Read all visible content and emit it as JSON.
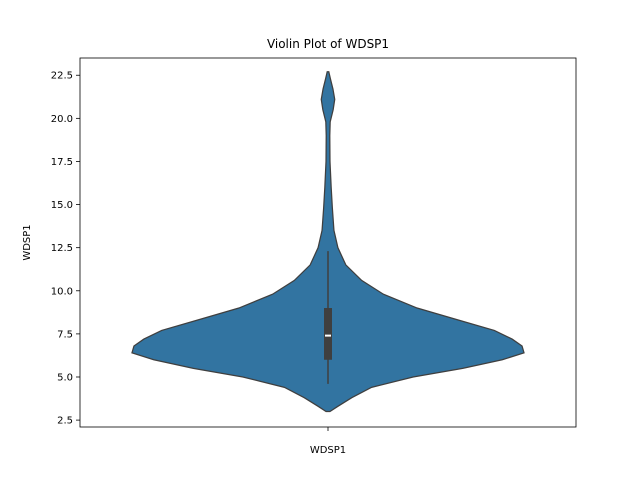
{
  "chart_data": {
    "type": "violin",
    "title": "Violin Plot of WDSP1",
    "xlabel": "",
    "ylabel": "WDSP1",
    "categories": [
      "WDSP1"
    ],
    "ylim": [
      2.1,
      23.5
    ],
    "yticks": [
      "2.5",
      "5.0",
      "7.5",
      "10.0",
      "12.5",
      "15.0",
      "17.5",
      "20.0",
      "22.5"
    ],
    "grid": false,
    "legend": "none",
    "color": "#3274a1",
    "edge_color": "#3f3f3f",
    "series": [
      {
        "category": "WDSP1",
        "min": 4.6,
        "q1": 6.0,
        "median": 7.4,
        "q3": 9.0,
        "max": 12.3,
        "range": [
          3.0,
          22.7
        ],
        "density_profile": [
          [
            3.0,
            0.01
          ],
          [
            3.3,
            0.05
          ],
          [
            3.8,
            0.12
          ],
          [
            4.4,
            0.22
          ],
          [
            5.0,
            0.43
          ],
          [
            5.5,
            0.68
          ],
          [
            6.0,
            0.88
          ],
          [
            6.4,
            0.99
          ],
          [
            6.8,
            0.98
          ],
          [
            7.2,
            0.93
          ],
          [
            7.7,
            0.84
          ],
          [
            8.3,
            0.66
          ],
          [
            9.0,
            0.45
          ],
          [
            9.8,
            0.28
          ],
          [
            10.6,
            0.17
          ],
          [
            11.5,
            0.09
          ],
          [
            12.5,
            0.05
          ],
          [
            13.5,
            0.03
          ],
          [
            14.8,
            0.022
          ],
          [
            16.0,
            0.016
          ],
          [
            17.5,
            0.01
          ],
          [
            19.0,
            0.009
          ],
          [
            19.8,
            0.011
          ],
          [
            20.5,
            0.026
          ],
          [
            21.1,
            0.034
          ],
          [
            21.7,
            0.025
          ],
          [
            22.3,
            0.012
          ],
          [
            22.7,
            0.004
          ]
        ]
      }
    ]
  }
}
